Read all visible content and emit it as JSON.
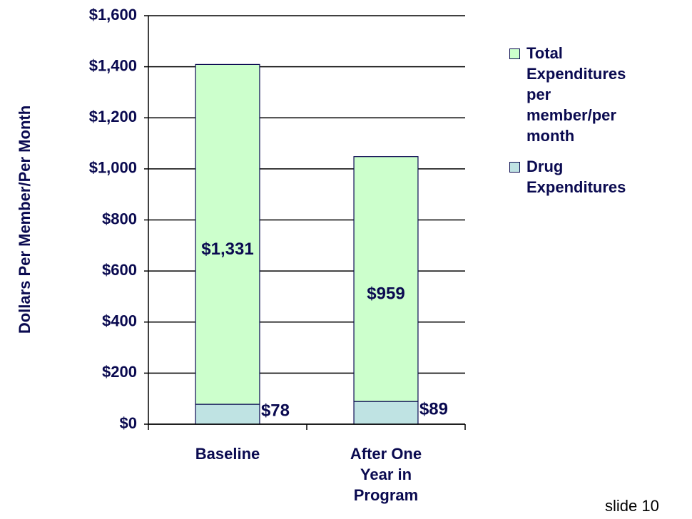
{
  "chart_data": {
    "type": "stacked_bar",
    "y_axis_label": "Dollars Per Member/Per Month",
    "categories": [
      "Baseline",
      "After One Year in Program"
    ],
    "series": [
      {
        "name": "Drug Expenditures",
        "color": "#bfe3e3",
        "values": [
          78,
          89
        ],
        "value_labels": [
          "$78",
          "$89"
        ]
      },
      {
        "name": "Total Expenditures per member/per month",
        "color": "#ccffcc",
        "values": [
          1331,
          959
        ],
        "value_labels": [
          "$1,331",
          "$959"
        ]
      }
    ],
    "ylim": [
      0,
      1600
    ],
    "yticks": [
      {
        "value": 0,
        "label": "$0"
      },
      {
        "value": 200,
        "label": "$200"
      },
      {
        "value": 400,
        "label": "$400"
      },
      {
        "value": 600,
        "label": "$600"
      },
      {
        "value": 800,
        "label": "$800"
      },
      {
        "value": 1000,
        "label": "$1,000"
      },
      {
        "value": 1200,
        "label": "$1,200"
      },
      {
        "value": 1400,
        "label": "$1,400"
      },
      {
        "value": 1600,
        "label": "$1,600"
      }
    ],
    "grid": true,
    "legend": "right"
  },
  "footer": "slide 10"
}
